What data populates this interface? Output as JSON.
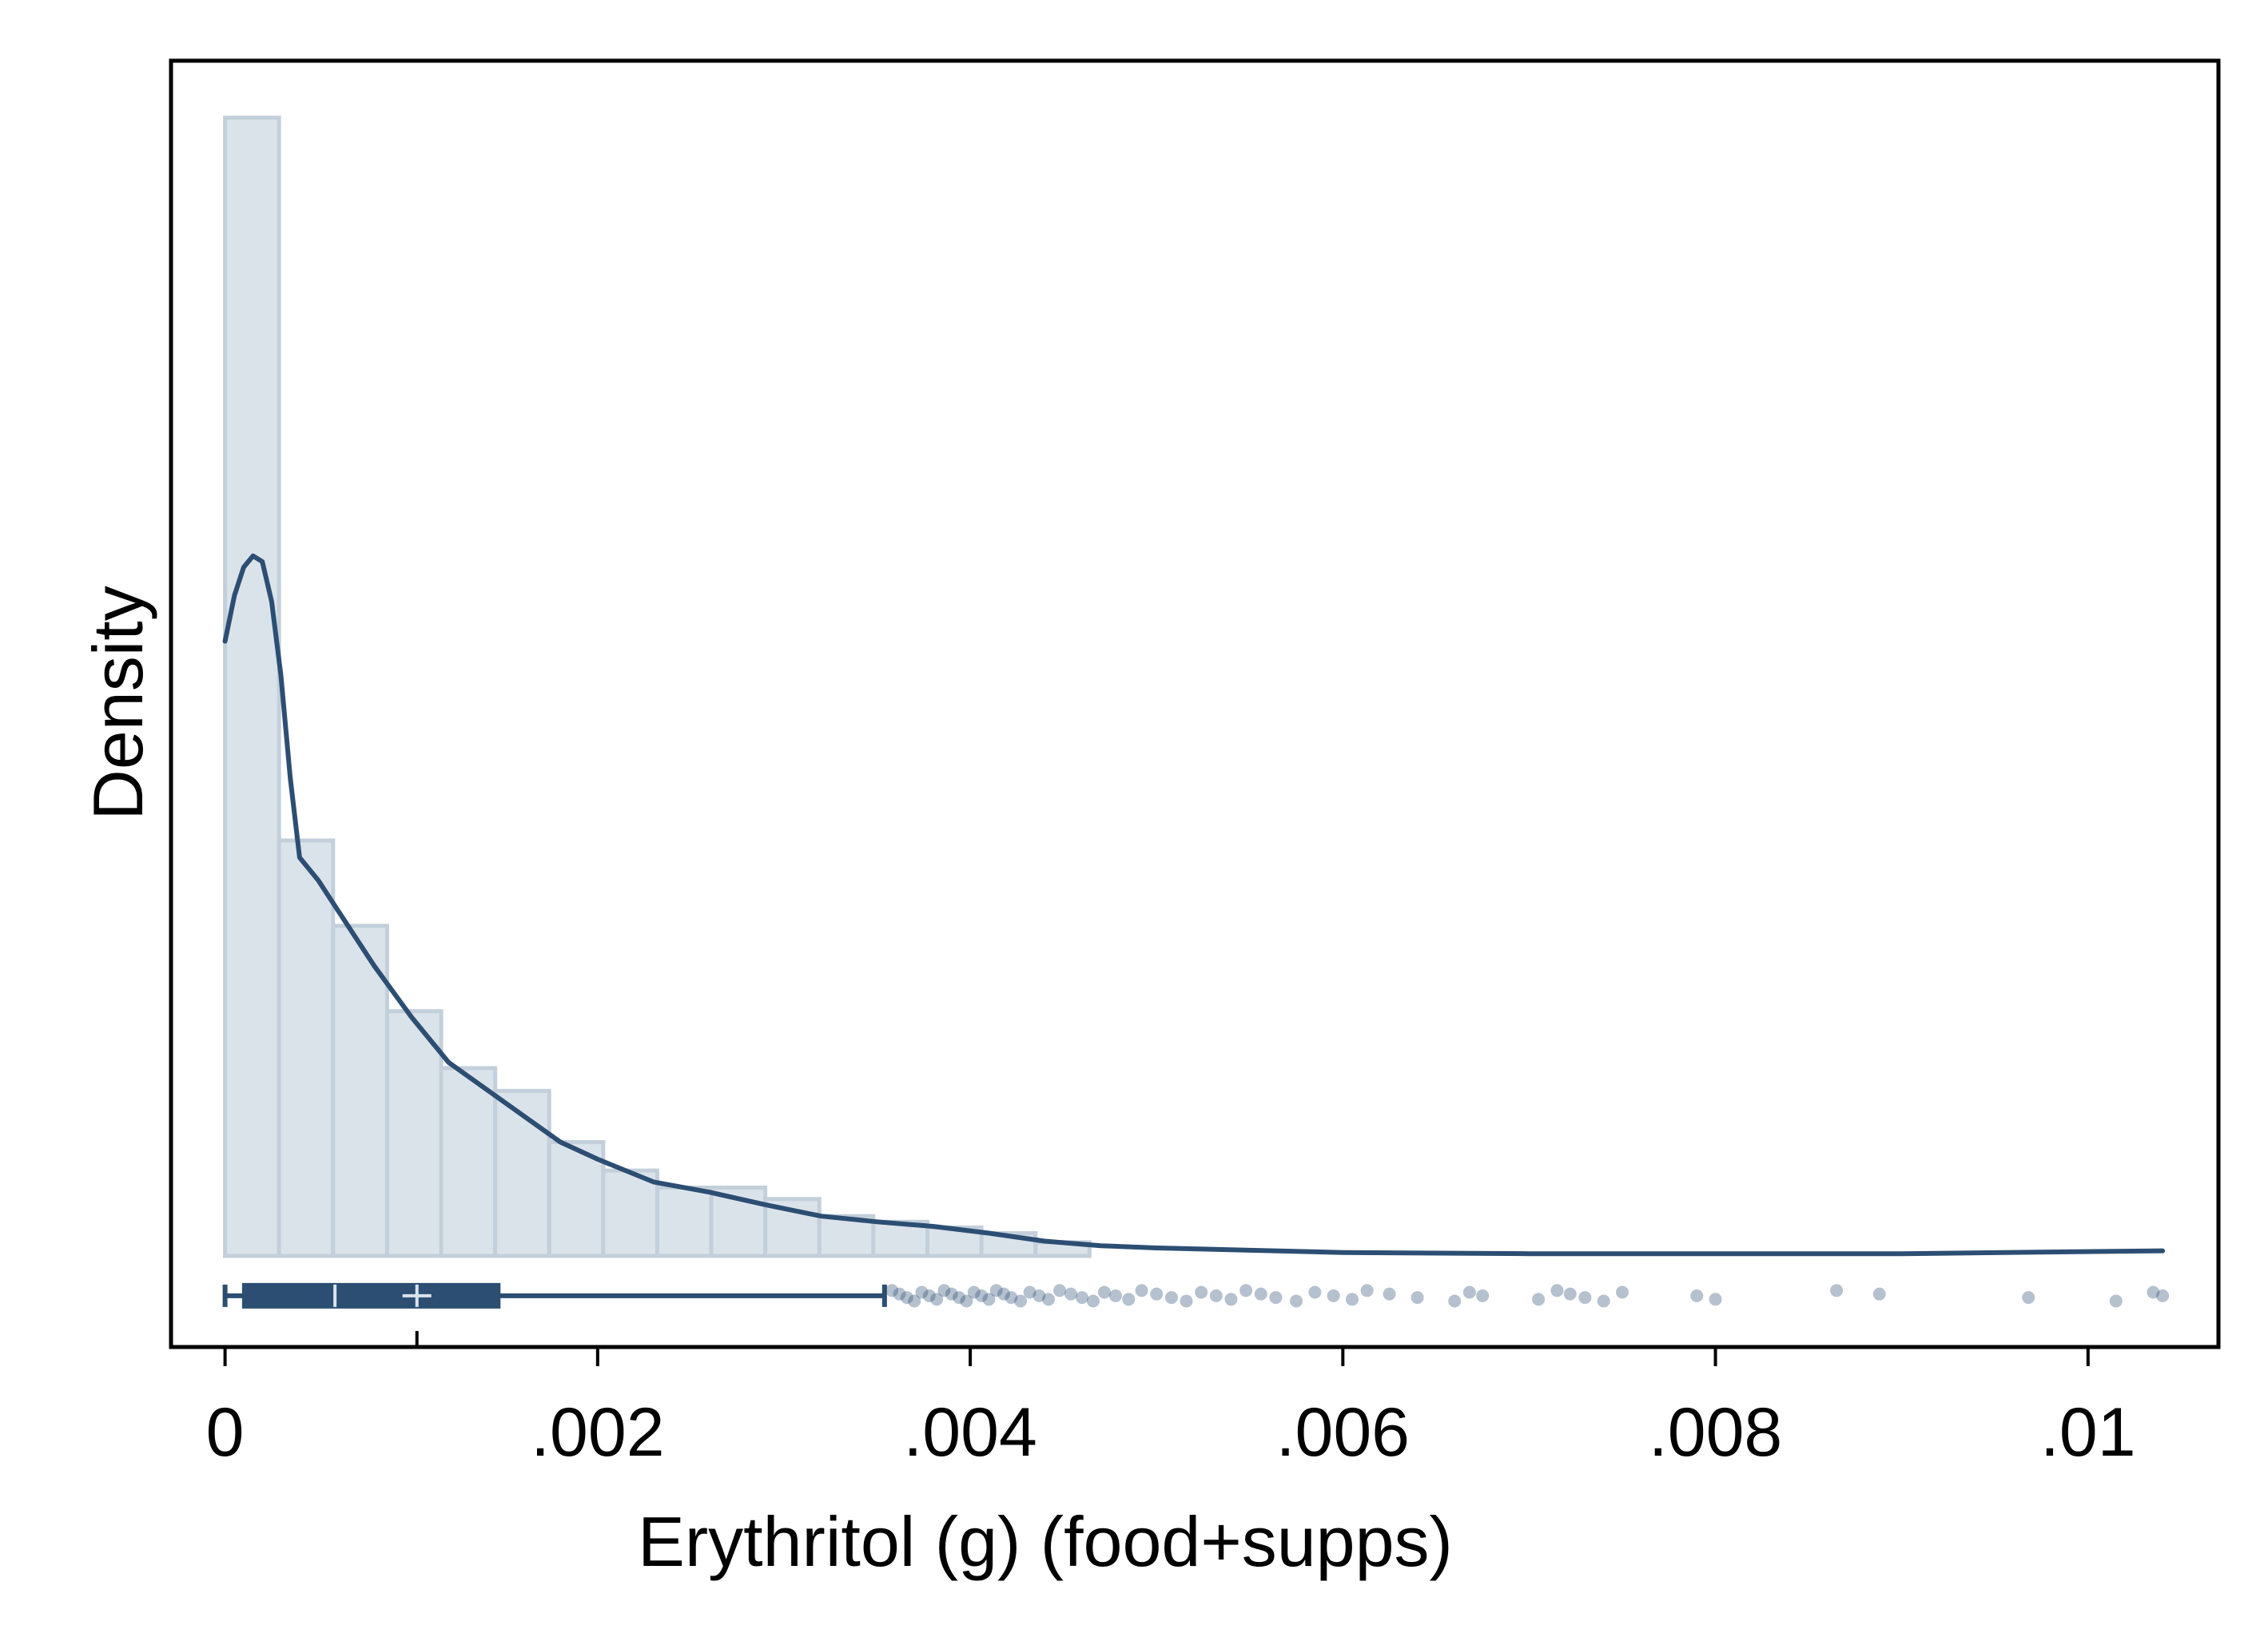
{
  "chart_data": {
    "type": "histogram",
    "xlabel": "Erythritol (g) (food+supps)",
    "ylabel": "Density",
    "xlim": [
      -0.00029,
      0.0107
    ],
    "ylim": [
      -0.08,
      1.05
    ],
    "x_ticks": [
      {
        "value": 0,
        "label": "0"
      },
      {
        "value": 0.002,
        "label": ".002"
      },
      {
        "value": 0.004,
        "label": ".004"
      },
      {
        "value": 0.006,
        "label": ".006"
      },
      {
        "value": 0.008,
        "label": ".008"
      },
      {
        "value": 0.01,
        "label": ".01"
      }
    ],
    "y_ticks_shown": false,
    "grid": false,
    "histogram": {
      "bin_width": 0.00029,
      "bins_start": [
        0,
        0.00029,
        0.00058,
        0.00087,
        0.00116,
        0.00145,
        0.00174,
        0.00203,
        0.00232,
        0.00261,
        0.0029,
        0.00319,
        0.00348,
        0.00377,
        0.00406,
        0.00435
      ],
      "heights": [
        1.0,
        0.365,
        0.29,
        0.215,
        0.165,
        0.145,
        0.1,
        0.075,
        0.06,
        0.06,
        0.05,
        0.035,
        0.03,
        0.025,
        0.02,
        0.012
      ],
      "color": "#dbe3ea",
      "edge_color": "#c3cfda"
    },
    "density_curve": {
      "color": "#2c4e73",
      "x": [
        0,
        5e-05,
        0.0001,
        0.00015,
        0.0002,
        0.00025,
        0.0003,
        0.00035,
        0.0004,
        0.0005,
        0.0006,
        0.0008,
        0.001,
        0.0012,
        0.0015,
        0.0018,
        0.002,
        0.0023,
        0.0026,
        0.0029,
        0.0032,
        0.0035,
        0.0038,
        0.0041,
        0.0044,
        0.0047,
        0.005,
        0.0055,
        0.006,
        0.007,
        0.008,
        0.009,
        0.0104
      ],
      "y": [
        0.54,
        0.58,
        0.605,
        0.615,
        0.61,
        0.575,
        0.51,
        0.42,
        0.35,
        0.33,
        0.305,
        0.255,
        0.21,
        0.17,
        0.135,
        0.1,
        0.085,
        0.065,
        0.056,
        0.045,
        0.035,
        0.03,
        0.026,
        0.02,
        0.013,
        0.009,
        0.007,
        0.005,
        0.003,
        0.002,
        0.002,
        0.002,
        0.0045
      ]
    },
    "box_plot": {
      "color": "#2c4e73",
      "y_position": -0.035,
      "whisker_low": 0,
      "q1": 0.0001,
      "median": 0.00059,
      "mean": 0.00103,
      "q3": 0.00147,
      "whisker_high": 0.00354,
      "outliers": [
        0.00358,
        0.00362,
        0.00366,
        0.0037,
        0.00374,
        0.00378,
        0.00382,
        0.00386,
        0.0039,
        0.00394,
        0.00398,
        0.00402,
        0.00406,
        0.0041,
        0.00414,
        0.00418,
        0.00422,
        0.00427,
        0.00432,
        0.00437,
        0.00442,
        0.00448,
        0.00454,
        0.0046,
        0.00466,
        0.00472,
        0.00478,
        0.00485,
        0.00492,
        0.005,
        0.00508,
        0.00516,
        0.00524,
        0.00532,
        0.0054,
        0.00548,
        0.00556,
        0.00564,
        0.00575,
        0.00585,
        0.00595,
        0.00605,
        0.00613,
        0.00625,
        0.0064,
        0.0066,
        0.00668,
        0.00675,
        0.00705,
        0.00715,
        0.00722,
        0.0073,
        0.0074,
        0.0075,
        0.0079,
        0.008,
        0.00865,
        0.00888,
        0.00968,
        0.01015,
        0.01035,
        0.0104
      ]
    }
  }
}
